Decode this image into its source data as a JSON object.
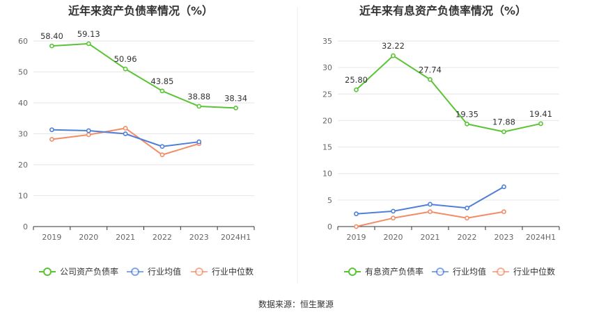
{
  "source_note": "数据来源：恒生聚源",
  "chart_data": [
    {
      "type": "line",
      "title": "近年来资产负债率情况（%）",
      "categories": [
        "2019",
        "2020",
        "2021",
        "2022",
        "2023",
        "2024H1"
      ],
      "ylim": [
        0,
        60
      ],
      "yticks": [
        "0",
        "10",
        "20",
        "30",
        "40",
        "50",
        "60"
      ],
      "grid": true,
      "legend_position": "bottom",
      "series": [
        {
          "name": "公司资产负债率",
          "color": "#5ac434",
          "values": [
            58.4,
            59.13,
            50.96,
            43.85,
            38.88,
            38.34
          ],
          "labels": [
            "58.40",
            "59.13",
            "50.96",
            "43.85",
            "38.88",
            "38.34"
          ]
        },
        {
          "name": "行业均值",
          "color": "#4f7fd8",
          "values": [
            31.3,
            31.0,
            30.0,
            25.9,
            27.4,
            null
          ],
          "labels": []
        },
        {
          "name": "行业中位数",
          "color": "#f28c67",
          "values": [
            28.2,
            29.7,
            31.8,
            23.2,
            26.8,
            null
          ],
          "labels": []
        }
      ]
    },
    {
      "type": "line",
      "title": "近年来有息资产负债率情况（%）",
      "categories": [
        "2019",
        "2020",
        "2021",
        "2022",
        "2023",
        "2024H1"
      ],
      "ylim": [
        0,
        35
      ],
      "yticks": [
        "0",
        "5",
        "10",
        "15",
        "20",
        "25",
        "30",
        "35"
      ],
      "grid": true,
      "legend_position": "bottom",
      "series": [
        {
          "name": "有息资产负债率",
          "color": "#5ac434",
          "values": [
            25.8,
            32.22,
            27.74,
            19.35,
            17.88,
            19.41
          ],
          "labels": [
            "25.80",
            "32.22",
            "27.74",
            "19.35",
            "17.88",
            "19.41"
          ]
        },
        {
          "name": "行业均值",
          "color": "#4f7fd8",
          "values": [
            2.4,
            2.9,
            4.2,
            3.5,
            7.5,
            null
          ],
          "labels": []
        },
        {
          "name": "行业中位数",
          "color": "#f28c67",
          "values": [
            0.0,
            1.6,
            2.8,
            1.6,
            2.8,
            null
          ],
          "labels": []
        }
      ]
    }
  ]
}
